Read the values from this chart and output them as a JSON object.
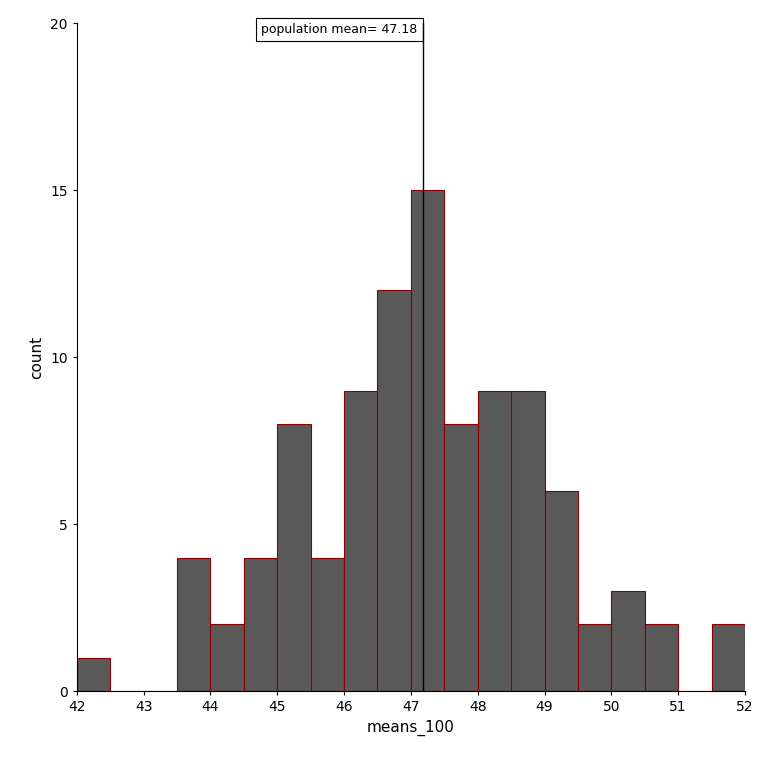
{
  "bin_edges": [
    42.0,
    42.5,
    43.0,
    43.5,
    44.0,
    44.5,
    45.0,
    45.5,
    46.0,
    46.5,
    47.0,
    47.5,
    48.0,
    48.5,
    49.0,
    49.5,
    50.0,
    50.5,
    51.0,
    51.5,
    52.0
  ],
  "counts": [
    1,
    0,
    0,
    4,
    2,
    4,
    8,
    4,
    9,
    12,
    15,
    8,
    9,
    9,
    6,
    2,
    3,
    2,
    0,
    2
  ],
  "bar_color": "#595959",
  "edge_color": "#8B0000",
  "population_mean": 47.18,
  "annotation_text": "population mean= 47.18",
  "xlabel": "means_100",
  "ylabel": "count",
  "xlim": [
    42,
    52
  ],
  "ylim": [
    0,
    20
  ],
  "yticks": [
    0,
    5,
    10,
    15,
    20
  ],
  "xticks": [
    42,
    43,
    44,
    45,
    46,
    47,
    48,
    49,
    50,
    51,
    52
  ],
  "background_color": "#ffffff",
  "figsize": [
    7.68,
    7.68
  ],
  "dpi": 100
}
